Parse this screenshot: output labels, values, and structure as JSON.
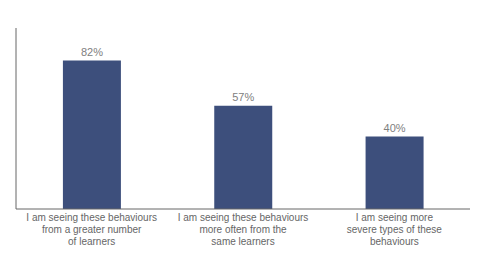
{
  "chart_data": {
    "type": "bar",
    "categories": [
      "I am seeing these behaviours\nfrom a greater number\nof learners",
      "I am seeing these behaviours\nmore often from the\nsame learners",
      "I am seeing more\nsevere types of these\nbehaviours"
    ],
    "values": [
      82,
      57,
      40
    ],
    "value_labels": [
      "82%",
      "57%",
      "40%"
    ],
    "data_labels": true,
    "color": "#3d4f7c",
    "ylim": [
      0,
      100
    ],
    "tick_labels": "x",
    "grid": false
  }
}
